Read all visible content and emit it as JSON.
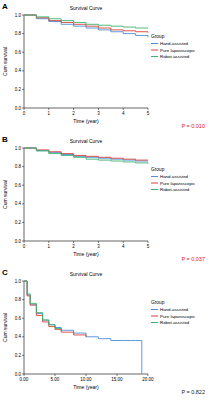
{
  "chart_data": [
    {
      "type": "line",
      "panel_label": "A",
      "title": "Survival Curve",
      "x_label": "Time (year)",
      "y_label": "Cum survival",
      "annotation": "P = 0.010",
      "legend_title": "Group",
      "legend": "right",
      "x": [
        0,
        0.5,
        1,
        1.5,
        2,
        2.5,
        3,
        3.5,
        4,
        4.5,
        5
      ],
      "series": [
        {
          "name": "Hand-assisted",
          "color": "#4a90d9",
          "line_style": "step",
          "values": [
            1,
            0.96,
            0.93,
            0.9,
            0.88,
            0.86,
            0.84,
            0.82,
            0.8,
            0.78,
            0.76
          ]
        },
        {
          "name": "Pure laparoscopic",
          "color": "#d9413a",
          "line_style": "step",
          "values": [
            1,
            0.97,
            0.94,
            0.92,
            0.9,
            0.88,
            0.86,
            0.84,
            0.83,
            0.82,
            0.81
          ]
        },
        {
          "name": "Robot-assisted",
          "color": "#3cb371",
          "line_style": "step",
          "values": [
            1,
            0.98,
            0.96,
            0.94,
            0.92,
            0.9,
            0.89,
            0.88,
            0.87,
            0.86,
            0.86
          ]
        }
      ],
      "xlim": [
        0,
        5
      ],
      "xticks": [
        0,
        1,
        2,
        3,
        4,
        5
      ],
      "ylim": [
        0,
        1
      ],
      "yticks": [
        {
          "value": 0,
          "label": "0.0"
        },
        {
          "value": 0.2,
          "label": "0.2"
        },
        {
          "value": 0.4,
          "label": "0.4"
        },
        {
          "value": 0.6,
          "label": "0.6"
        },
        {
          "value": 0.8,
          "label": "0.8"
        },
        {
          "value": 1,
          "label": "1.0"
        }
      ]
    },
    {
      "type": "line",
      "panel_label": "B",
      "title": "Survival Curve",
      "x_label": "Time (year)",
      "y_label": "Cum survival",
      "annotation": "P = 0.037",
      "legend_title": "Group",
      "legend": "right",
      "x": [
        0,
        0.5,
        1,
        1.5,
        2,
        2.5,
        3,
        3.5,
        4,
        4.5,
        5
      ],
      "series": [
        {
          "name": "Hand-assisted",
          "color": "#4a90d9",
          "line_style": "step",
          "values": [
            1,
            0.97,
            0.95,
            0.93,
            0.91,
            0.9,
            0.89,
            0.88,
            0.87,
            0.86,
            0.86
          ]
        },
        {
          "name": "Pure laparoscopic",
          "color": "#d9413a",
          "line_style": "step",
          "values": [
            1,
            0.98,
            0.96,
            0.94,
            0.92,
            0.91,
            0.9,
            0.89,
            0.88,
            0.87,
            0.87
          ]
        },
        {
          "name": "Robot-assisted",
          "color": "#3cb371",
          "line_style": "step",
          "values": [
            1,
            0.97,
            0.94,
            0.92,
            0.9,
            0.88,
            0.87,
            0.86,
            0.85,
            0.84,
            0.83
          ]
        }
      ],
      "xlim": [
        0,
        5
      ],
      "xticks": [
        0,
        1,
        2,
        3,
        4,
        5
      ],
      "ylim": [
        0,
        1
      ],
      "yticks": [
        {
          "value": 0,
          "label": "0.0"
        },
        {
          "value": 0.2,
          "label": "0.2"
        },
        {
          "value": 0.4,
          "label": "0.4"
        },
        {
          "value": 0.6,
          "label": "0.6"
        },
        {
          "value": 0.8,
          "label": "0.8"
        },
        {
          "value": 1,
          "label": "1.0"
        }
      ]
    },
    {
      "type": "line",
      "panel_label": "C",
      "title": "Survival Curve",
      "x_label": "Time (year)",
      "y_label": "Cum survival",
      "annotation": "P = 0.822",
      "legend_title": "Group",
      "legend": "right",
      "x": [
        0,
        0.5,
        1,
        2,
        3,
        4,
        5,
        6,
        8,
        10,
        12,
        14,
        16,
        18,
        19
      ],
      "series": [
        {
          "name": "Hand-assisted",
          "color": "#4a90d9",
          "line_style": "step",
          "values": [
            1,
            0.85,
            0.75,
            0.65,
            0.58,
            0.53,
            0.5,
            0.47,
            0.44,
            0.4,
            0.38,
            0.36,
            0.36,
            0.36,
            0
          ]
        },
        {
          "name": "Pure laparoscopic",
          "color": "#d9413a",
          "line_style": "step",
          "values": [
            1,
            0.84,
            0.74,
            0.63,
            0.56,
            0.51,
            0.48,
            0.45,
            0.42,
            0.4,
            null,
            null,
            null,
            null,
            null
          ]
        },
        {
          "name": "Robot-assisted",
          "color": "#3cb371",
          "line_style": "step",
          "values": [
            1,
            0.86,
            0.76,
            0.66,
            0.58,
            0.53,
            0.49,
            0.46,
            null,
            null,
            null,
            null,
            null,
            null,
            null
          ]
        }
      ],
      "xlim": [
        0,
        20
      ],
      "xticks": [
        {
          "value": 0,
          "label": "0.00"
        },
        {
          "value": 5,
          "label": "5.00"
        },
        {
          "value": 10,
          "label": "10.00"
        },
        {
          "value": 15,
          "label": "15.00"
        },
        {
          "value": 20,
          "label": "20.00"
        }
      ],
      "ylim": [
        0,
        1
      ],
      "yticks": [
        {
          "value": 0,
          "label": "0.0"
        },
        {
          "value": 0.2,
          "label": "0.2"
        },
        {
          "value": 0.4,
          "label": "0.4"
        },
        {
          "value": 0.6,
          "label": "0.6"
        },
        {
          "value": 0.8,
          "label": "0.8"
        },
        {
          "value": 1,
          "label": "1.0"
        }
      ]
    }
  ]
}
